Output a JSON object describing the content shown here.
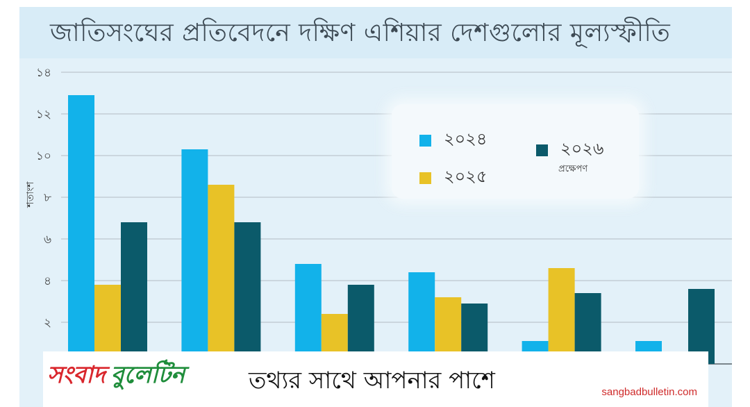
{
  "chart_data": {
    "type": "bar",
    "title": "জাতিসংঘের প্রতিবেদনে দক্ষিণ এশিয়ার দেশগুলোর মূল্যস্ফীতি",
    "ylabel": "শতাংশ",
    "ylim": [
      0,
      14
    ],
    "yticks": [
      {
        "value": 2,
        "label": "২"
      },
      {
        "value": 4,
        "label": "৪"
      },
      {
        "value": 6,
        "label": "৬"
      },
      {
        "value": 8,
        "label": "৮"
      },
      {
        "value": 10,
        "label": "১০"
      },
      {
        "value": 12,
        "label": "১২"
      },
      {
        "value": 14,
        "label": "১৪"
      }
    ],
    "categories": [
      "",
      "",
      "",
      "",
      "",
      ""
    ],
    "series": [
      {
        "name": "২০২৪",
        "color": "#12b2ea",
        "values": [
          12.9,
          10.3,
          4.8,
          4.4,
          1.1,
          1.1
        ]
      },
      {
        "name": "২০২৫",
        "color": "#e8c227",
        "values": [
          3.8,
          8.6,
          2.4,
          3.2,
          4.6,
          0.4
        ]
      },
      {
        "name": "২০২৬",
        "note": "প্রক্ষেপণ",
        "color": "#0b5a6a",
        "values": [
          6.8,
          6.8,
          3.8,
          2.9,
          3.4,
          3.6
        ]
      }
    ],
    "grid": true,
    "legend_position": "top-right"
  },
  "footer": {
    "logo_word1": "সংবাদ",
    "logo_word2": "বুলেটিন",
    "tagline": "তথ্যর সাথে আপনার পাশে",
    "website": "sangbadbulletin.com"
  }
}
